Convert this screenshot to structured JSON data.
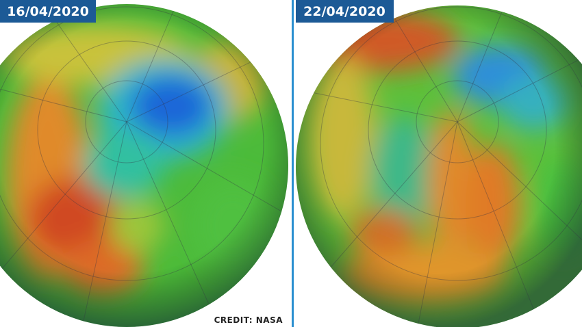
{
  "panels": [
    {
      "date": "16/04/2020"
    },
    {
      "date": "22/04/2020"
    }
  ],
  "credit": "CREDIT: NASA"
}
